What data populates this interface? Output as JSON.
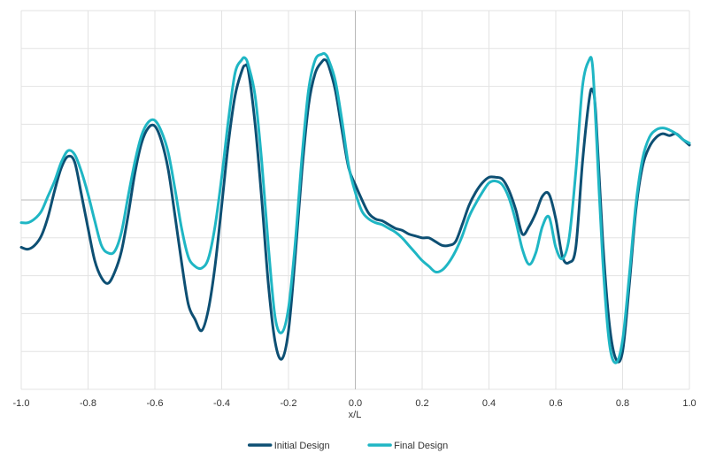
{
  "chart_data": {
    "type": "line",
    "title": "",
    "xlabel": "x/L",
    "ylabel": "",
    "xlim": [
      -1.0,
      1.0
    ],
    "ylim": [
      -1.0,
      1.0
    ],
    "grid": true,
    "legend_position": "bottom-center",
    "x_tick_labels": [
      "-1.0",
      "-0.8",
      "-0.6",
      "-0.4",
      "-0.2",
      "0.0",
      "0.2",
      "0.4",
      "0.6",
      "0.8",
      "1.0"
    ],
    "x_ticks": [
      -1.0,
      -0.8,
      -0.6,
      -0.4,
      -0.2,
      0.0,
      0.2,
      0.4,
      0.6,
      0.8,
      1.0
    ],
    "y_gridlines": [
      -1.0,
      -0.8,
      -0.6,
      -0.4,
      -0.2,
      0.0,
      0.2,
      0.4,
      0.6,
      0.8,
      1.0
    ],
    "series": [
      {
        "name": "Initial Design",
        "color": "#0d4f73",
        "points": [
          [
            -1.0,
            -0.25
          ],
          [
            -0.98,
            -0.26
          ],
          [
            -0.96,
            -0.24
          ],
          [
            -0.94,
            -0.19
          ],
          [
            -0.92,
            -0.09
          ],
          [
            -0.9,
            0.05
          ],
          [
            -0.88,
            0.17
          ],
          [
            -0.86,
            0.23
          ],
          [
            -0.84,
            0.2
          ],
          [
            -0.82,
            0.03
          ],
          [
            -0.8,
            -0.15
          ],
          [
            -0.78,
            -0.32
          ],
          [
            -0.76,
            -0.41
          ],
          [
            -0.74,
            -0.44
          ],
          [
            -0.72,
            -0.38
          ],
          [
            -0.7,
            -0.27
          ],
          [
            -0.68,
            -0.08
          ],
          [
            -0.66,
            0.14
          ],
          [
            -0.64,
            0.3
          ],
          [
            -0.62,
            0.38
          ],
          [
            -0.6,
            0.39
          ],
          [
            -0.58,
            0.31
          ],
          [
            -0.56,
            0.16
          ],
          [
            -0.54,
            -0.08
          ],
          [
            -0.52,
            -0.33
          ],
          [
            -0.5,
            -0.55
          ],
          [
            -0.48,
            -0.63
          ],
          [
            -0.46,
            -0.69
          ],
          [
            -0.44,
            -0.58
          ],
          [
            -0.42,
            -0.35
          ],
          [
            -0.4,
            -0.03
          ],
          [
            -0.38,
            0.3
          ],
          [
            -0.36,
            0.55
          ],
          [
            -0.34,
            0.68
          ],
          [
            -0.33,
            0.71
          ],
          [
            -0.32,
            0.68
          ],
          [
            -0.3,
            0.4
          ],
          [
            -0.28,
            0.0
          ],
          [
            -0.26,
            -0.45
          ],
          [
            -0.24,
            -0.75
          ],
          [
            -0.22,
            -0.84
          ],
          [
            -0.2,
            -0.69
          ],
          [
            -0.18,
            -0.3
          ],
          [
            -0.16,
            0.15
          ],
          [
            -0.14,
            0.5
          ],
          [
            -0.12,
            0.67
          ],
          [
            -0.1,
            0.73
          ],
          [
            -0.09,
            0.74
          ],
          [
            -0.08,
            0.71
          ],
          [
            -0.06,
            0.58
          ],
          [
            -0.04,
            0.37
          ],
          [
            -0.02,
            0.17
          ],
          [
            0.0,
            0.08
          ],
          [
            0.02,
            0.0
          ],
          [
            0.04,
            -0.07
          ],
          [
            0.06,
            -0.1
          ],
          [
            0.08,
            -0.11
          ],
          [
            0.1,
            -0.13
          ],
          [
            0.12,
            -0.15
          ],
          [
            0.14,
            -0.16
          ],
          [
            0.16,
            -0.18
          ],
          [
            0.18,
            -0.19
          ],
          [
            0.2,
            -0.2
          ],
          [
            0.22,
            -0.2
          ],
          [
            0.24,
            -0.22
          ],
          [
            0.26,
            -0.24
          ],
          [
            0.28,
            -0.24
          ],
          [
            0.3,
            -0.22
          ],
          [
            0.32,
            -0.13
          ],
          [
            0.34,
            -0.03
          ],
          [
            0.36,
            0.04
          ],
          [
            0.38,
            0.09
          ],
          [
            0.4,
            0.12
          ],
          [
            0.42,
            0.12
          ],
          [
            0.44,
            0.11
          ],
          [
            0.46,
            0.05
          ],
          [
            0.48,
            -0.05
          ],
          [
            0.5,
            -0.18
          ],
          [
            0.52,
            -0.14
          ],
          [
            0.54,
            -0.07
          ],
          [
            0.56,
            0.02
          ],
          [
            0.58,
            0.03
          ],
          [
            0.6,
            -0.1
          ],
          [
            0.62,
            -0.3
          ],
          [
            0.64,
            -0.33
          ],
          [
            0.66,
            -0.25
          ],
          [
            0.68,
            0.2
          ],
          [
            0.7,
            0.53
          ],
          [
            0.71,
            0.58
          ],
          [
            0.72,
            0.45
          ],
          [
            0.74,
            -0.2
          ],
          [
            0.76,
            -0.65
          ],
          [
            0.78,
            -0.84
          ],
          [
            0.8,
            -0.8
          ],
          [
            0.82,
            -0.45
          ],
          [
            0.84,
            -0.05
          ],
          [
            0.86,
            0.18
          ],
          [
            0.88,
            0.28
          ],
          [
            0.9,
            0.33
          ],
          [
            0.92,
            0.35
          ],
          [
            0.94,
            0.34
          ],
          [
            0.96,
            0.35
          ],
          [
            0.98,
            0.32
          ],
          [
            1.0,
            0.29
          ]
        ]
      },
      {
        "name": "Final Design",
        "color": "#1fb6c4",
        "points": [
          [
            -1.0,
            -0.12
          ],
          [
            -0.98,
            -0.12
          ],
          [
            -0.96,
            -0.1
          ],
          [
            -0.94,
            -0.06
          ],
          [
            -0.92,
            0.02
          ],
          [
            -0.9,
            0.1
          ],
          [
            -0.88,
            0.2
          ],
          [
            -0.86,
            0.26
          ],
          [
            -0.84,
            0.24
          ],
          [
            -0.82,
            0.15
          ],
          [
            -0.8,
            0.03
          ],
          [
            -0.78,
            -0.11
          ],
          [
            -0.76,
            -0.24
          ],
          [
            -0.74,
            -0.28
          ],
          [
            -0.72,
            -0.27
          ],
          [
            -0.7,
            -0.17
          ],
          [
            -0.68,
            0.02
          ],
          [
            -0.66,
            0.2
          ],
          [
            -0.64,
            0.34
          ],
          [
            -0.62,
            0.41
          ],
          [
            -0.6,
            0.42
          ],
          [
            -0.58,
            0.36
          ],
          [
            -0.56,
            0.25
          ],
          [
            -0.54,
            0.06
          ],
          [
            -0.52,
            -0.15
          ],
          [
            -0.5,
            -0.3
          ],
          [
            -0.48,
            -0.35
          ],
          [
            -0.46,
            -0.36
          ],
          [
            -0.44,
            -0.31
          ],
          [
            -0.42,
            -0.14
          ],
          [
            -0.4,
            0.12
          ],
          [
            -0.38,
            0.42
          ],
          [
            -0.36,
            0.67
          ],
          [
            -0.34,
            0.74
          ],
          [
            -0.33,
            0.75
          ],
          [
            -0.32,
            0.71
          ],
          [
            -0.3,
            0.55
          ],
          [
            -0.28,
            0.2
          ],
          [
            -0.26,
            -0.25
          ],
          [
            -0.24,
            -0.62
          ],
          [
            -0.22,
            -0.7
          ],
          [
            -0.2,
            -0.57
          ],
          [
            -0.18,
            -0.23
          ],
          [
            -0.16,
            0.22
          ],
          [
            -0.14,
            0.58
          ],
          [
            -0.12,
            0.74
          ],
          [
            -0.1,
            0.77
          ],
          [
            -0.09,
            0.77
          ],
          [
            -0.08,
            0.74
          ],
          [
            -0.06,
            0.63
          ],
          [
            -0.04,
            0.42
          ],
          [
            -0.02,
            0.18
          ],
          [
            0.0,
            0.04
          ],
          [
            0.02,
            -0.06
          ],
          [
            0.04,
            -0.1
          ],
          [
            0.06,
            -0.12
          ],
          [
            0.08,
            -0.13
          ],
          [
            0.1,
            -0.15
          ],
          [
            0.12,
            -0.17
          ],
          [
            0.14,
            -0.2
          ],
          [
            0.16,
            -0.24
          ],
          [
            0.18,
            -0.28
          ],
          [
            0.2,
            -0.32
          ],
          [
            0.22,
            -0.35
          ],
          [
            0.24,
            -0.38
          ],
          [
            0.26,
            -0.37
          ],
          [
            0.28,
            -0.33
          ],
          [
            0.3,
            -0.27
          ],
          [
            0.32,
            -0.19
          ],
          [
            0.34,
            -0.09
          ],
          [
            0.36,
            -0.02
          ],
          [
            0.38,
            0.04
          ],
          [
            0.4,
            0.09
          ],
          [
            0.42,
            0.1
          ],
          [
            0.44,
            0.08
          ],
          [
            0.46,
            0.01
          ],
          [
            0.48,
            -0.11
          ],
          [
            0.5,
            -0.26
          ],
          [
            0.52,
            -0.34
          ],
          [
            0.54,
            -0.28
          ],
          [
            0.56,
            -0.14
          ],
          [
            0.58,
            -0.09
          ],
          [
            0.6,
            -0.25
          ],
          [
            0.62,
            -0.31
          ],
          [
            0.64,
            -0.2
          ],
          [
            0.66,
            0.15
          ],
          [
            0.68,
            0.6
          ],
          [
            0.7,
            0.74
          ],
          [
            0.71,
            0.71
          ],
          [
            0.72,
            0.4
          ],
          [
            0.74,
            -0.3
          ],
          [
            0.76,
            -0.75
          ],
          [
            0.78,
            -0.86
          ],
          [
            0.8,
            -0.74
          ],
          [
            0.82,
            -0.4
          ],
          [
            0.84,
            -0.02
          ],
          [
            0.86,
            0.22
          ],
          [
            0.88,
            0.33
          ],
          [
            0.9,
            0.37
          ],
          [
            0.92,
            0.38
          ],
          [
            0.94,
            0.37
          ],
          [
            0.96,
            0.35
          ],
          [
            0.98,
            0.32
          ],
          [
            1.0,
            0.3
          ]
        ]
      }
    ]
  }
}
